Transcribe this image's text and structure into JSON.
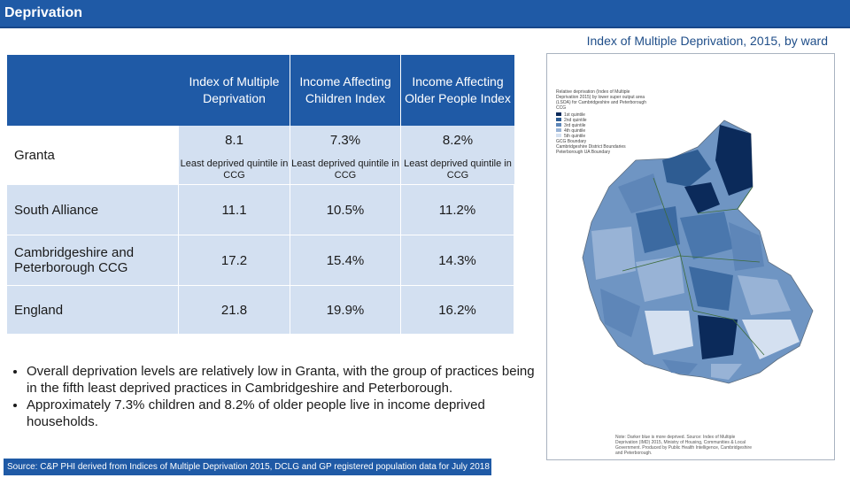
{
  "header": {
    "title": "Deprivation"
  },
  "map": {
    "title": "Index of Multiple Deprivation, 2015, by ward",
    "legend": {
      "heading": "Relative deprivation (Index of Multiple Deprivation 2015) by lower super output area (LSOA) for Cambridgeshire and Peterborough CCG",
      "items": [
        "1st quintile",
        "2nd quintile",
        "3rd quintile",
        "4th quintile",
        "5th quintile"
      ],
      "boundaries": [
        "GCG Boundary",
        "Cambridgeshire District Boundaries",
        "Peterborough UA Boundary"
      ]
    },
    "note": "Note: Darker blue is more deprived. Source: Index of Multiple Deprivation (IMD) 2015, Ministry of Housing, Communities & Local Government. Produced by Public Health Intelligence, Cambridgeshire and Peterborough.",
    "colors": {
      "q1": "#0b2a5a",
      "q2": "#2e5c92",
      "q3": "#5e86b8",
      "q4": "#98b3d6",
      "q5": "#d4e0f0",
      "boundary": "#3d6b3a"
    }
  },
  "table": {
    "headers": [
      "Index of Multiple Deprivation",
      "Income Affecting Children Index",
      "Income Affecting Older People Index"
    ],
    "granta": {
      "label": "Granta",
      "values": [
        "8.1",
        "7.3%",
        "8.2%"
      ],
      "subs": [
        "Least deprived quintile in CCG",
        "Least deprived quintile in CCG",
        "Least deprived quintile in CCG"
      ]
    },
    "rows": [
      {
        "label": "South Alliance",
        "values": [
          "11.1",
          "10.5%",
          "11.2%"
        ]
      },
      {
        "label": "Cambridgeshire and Peterborough CCG",
        "values": [
          "17.2",
          "15.4%",
          "14.3%"
        ]
      },
      {
        "label": "England",
        "values": [
          "21.8",
          "19.9%",
          "16.2%"
        ]
      }
    ]
  },
  "bullets": [
    "Overall deprivation levels are relatively low in Granta, with the group of practices being in the fifth least deprived practices in Cambridgeshire and Peterborough.",
    "Approximately 7.3% children and 8.2% of older people live in income deprived households."
  ],
  "footer": {
    "source": "Source: C&P PHI derived from Indices of Multiple Deprivation 2015, DCLG and GP registered population data for July 2018"
  }
}
